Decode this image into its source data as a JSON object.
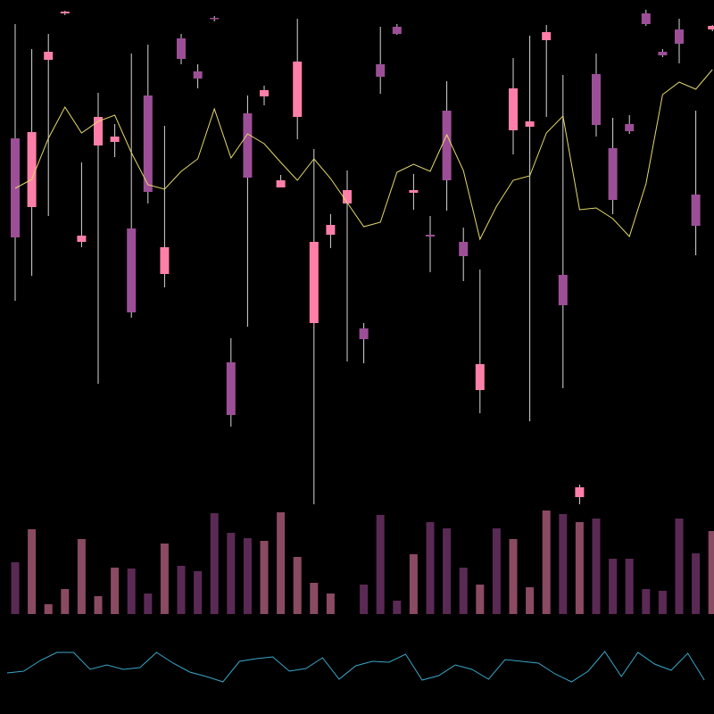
{
  "chart_data": {
    "type": "candlestick",
    "ylim": [
      0,
      800
    ],
    "up_color": "#ff7fa8",
    "down_color": "#9c4f96",
    "volume_up_color": "#8a4a62",
    "volume_down_color": "#5a2a55",
    "open": [
      645,
      568,
      733,
      785,
      529,
      637,
      641,
      544,
      693,
      493,
      757,
      720,
      780,
      394,
      673,
      692,
      590,
      669,
      438,
      537,
      572,
      432,
      728,
      770,
      584,
      537,
      676,
      529,
      363,
      null,
      654,
      658,
      755,
      492,
      243,
      717,
      634,
      661,
      785,
      742,
      767,
      582,
      767
    ],
    "high": [
      773,
      745,
      762,
      788,
      618,
      696,
      661,
      740,
      750,
      659,
      762,
      728,
      782,
      421,
      693,
      704,
      604,
      779,
      633,
      560,
      609,
      438,
      770,
      773,
      605,
      558,
      709,
      545,
      498,
      null,
      735,
      760,
      772,
      716,
      257,
      740,
      668,
      671,
      789,
      745,
      779,
      676,
      772
    ],
    "low": [
      463,
      491,
      558,
      783,
      523,
      370,
      624,
      444,
      572,
      478,
      728,
      701,
      776,
      322,
      434,
      682,
      590,
      644,
      235,
      522,
      395,
      393,
      695,
      761,
      565,
      495,
      564,
      485,
      337,
      null,
      627,
      328,
      669,
      365,
      235,
      647,
      560,
      650,
      771,
      736,
      729,
      514,
      765
    ],
    "close": [
      534,
      652,
      742,
      787,
      536,
      669,
      647,
      450,
      585,
      523,
      734,
      712,
      779,
      335,
      601,
      699,
      598,
      731,
      529,
      548,
      587,
      420,
      714,
      762,
      587,
      535,
      598,
      513,
      392,
      null,
      701,
      664,
      764,
      458,
      254,
      660,
      576,
      653,
      773,
      738,
      751,
      547,
      771
    ],
    "volume": [
      58,
      95,
      11,
      28,
      84,
      20,
      52,
      51,
      23,
      79,
      54,
      48,
      113,
      91,
      85,
      82,
      114,
      64,
      35,
      23,
      null,
      33,
      111,
      15,
      67,
      103,
      96,
      52,
      33,
      96,
      84,
      30,
      116,
      112,
      103,
      107,
      62,
      62,
      28,
      26,
      107,
      68,
      93
    ],
    "moving_average": {
      "color": "#e6d96b",
      "values": [
        589,
        599,
        645,
        680,
        651,
        664,
        671,
        629,
        593,
        588,
        608,
        622,
        678,
        623,
        650,
        639,
        618,
        598,
        622,
        600,
        573,
        546,
        551,
        607,
        616,
        608,
        649,
        609,
        532,
        569,
        598,
        603,
        651,
        670,
        565,
        567,
        555,
        535,
        594,
        694,
        708,
        700,
        722
      ]
    },
    "indicator": {
      "color": "#3aa7c9",
      "values": [
        46,
        48,
        60,
        69,
        69,
        50,
        55,
        50,
        52,
        69,
        57,
        47,
        42,
        36,
        59,
        62,
        64,
        48,
        51,
        63,
        39,
        54,
        59,
        58,
        67,
        38,
        43,
        55,
        50,
        39,
        61,
        59,
        57,
        45,
        36,
        48,
        70,
        42,
        69,
        56,
        49,
        68,
        38
      ]
    }
  }
}
